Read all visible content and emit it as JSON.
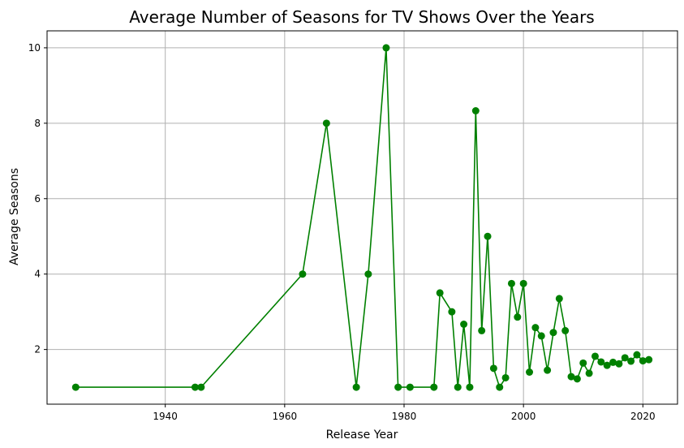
{
  "chart_data": {
    "type": "line",
    "title": "Average Number of Seasons for TV Shows Over the Years",
    "xlabel": "Release Year",
    "ylabel": "Average Seasons",
    "xlim": [
      1920.2,
      2025.8
    ],
    "ylim": [
      0.55,
      10.45
    ],
    "xticks": [
      1940,
      1960,
      1980,
      2000,
      2020
    ],
    "yticks": [
      2,
      4,
      6,
      8,
      10
    ],
    "grid": true,
    "color": "#008000",
    "x": [
      1925,
      1945,
      1946,
      1963,
      1967,
      1972,
      1974,
      1977,
      1979,
      1981,
      1985,
      1986,
      1988,
      1989,
      1990,
      1991,
      1992,
      1993,
      1994,
      1995,
      1996,
      1997,
      1998,
      1999,
      2000,
      2001,
      2002,
      2003,
      2004,
      2005,
      2006,
      2007,
      2008,
      2009,
      2010,
      2011,
      2012,
      2013,
      2014,
      2015,
      2016,
      2017,
      2018,
      2019,
      2020,
      2021
    ],
    "y": [
      1.0,
      1.0,
      1.0,
      4.0,
      8.0,
      1.0,
      4.0,
      10.0,
      1.0,
      1.0,
      1.0,
      3.5,
      3.0,
      1.0,
      2.67,
      1.0,
      8.33,
      2.5,
      5.0,
      1.5,
      1.0,
      1.25,
      3.75,
      2.86,
      3.75,
      1.4,
      2.58,
      2.36,
      1.45,
      2.45,
      3.35,
      2.5,
      1.28,
      1.22,
      1.64,
      1.37,
      1.82,
      1.67,
      1.58,
      1.66,
      1.62,
      1.78,
      1.69,
      1.86,
      1.7,
      1.73
    ]
  }
}
